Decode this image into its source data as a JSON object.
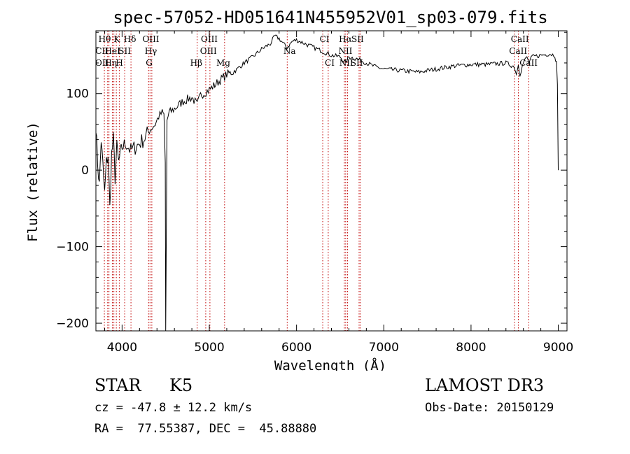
{
  "chart_data": {
    "type": "line",
    "title": "spec-57052-HD051641N455952V01_sp03-079.fits",
    "xlabel": "Wavelength (Å)",
    "ylabel": "Flux (relative)",
    "xlim": [
      3700,
      9100
    ],
    "ylim": [
      -210,
      182
    ],
    "xticks": [
      4000,
      5000,
      6000,
      7000,
      8000,
      9000
    ],
    "yticks": [
      -200,
      -100,
      0,
      100
    ],
    "grid": false,
    "series": [
      {
        "name": "flux",
        "x": [
          3700,
          3720,
          3740,
          3760,
          3780,
          3800,
          3820,
          3840,
          3860,
          3880,
          3900,
          3920,
          3940,
          3960,
          3980,
          4000,
          4050,
          4100,
          4150,
          4200,
          4250,
          4300,
          4340,
          4380,
          4420,
          4460,
          4480,
          4495,
          4500,
          4505,
          4515,
          4540,
          4600,
          4700,
          4800,
          4861,
          4900,
          5000,
          5100,
          5200,
          5300,
          5400,
          5500,
          5600,
          5700,
          5750,
          5800,
          5850,
          5890,
          5950,
          6000,
          6100,
          6200,
          6300,
          6400,
          6500,
          6563,
          6600,
          6700,
          6800,
          6900,
          7000,
          7200,
          7400,
          7600,
          7800,
          8000,
          8200,
          8400,
          8498,
          8520,
          8542,
          8560,
          8600,
          8640,
          8662,
          8700,
          8800,
          8900,
          8960,
          8980,
          8990,
          9000
        ],
        "values": [
          60,
          10,
          -20,
          40,
          5,
          -30,
          10,
          20,
          -50,
          20,
          40,
          -10,
          30,
          10,
          20,
          30,
          35,
          25,
          30,
          35,
          40,
          50,
          55,
          60,
          70,
          75,
          72,
          10,
          -210,
          -130,
          65,
          75,
          80,
          90,
          95,
          85,
          98,
          105,
          115,
          125,
          130,
          140,
          148,
          158,
          165,
          175,
          172,
          165,
          160,
          168,
          170,
          165,
          160,
          155,
          150,
          148,
          140,
          148,
          145,
          140,
          135,
          132,
          130,
          128,
          132,
          136,
          138,
          138,
          140,
          135,
          125,
          140,
          125,
          140,
          148,
          140,
          148,
          150,
          152,
          150,
          140,
          110,
          0
        ]
      }
    ],
    "line_markers": [
      {
        "label": "Hθ",
        "x": 3797
      },
      {
        "label": "CII",
        "x": 3835
      },
      {
        "label": "OII",
        "x": 3850
      },
      {
        "label": "HeI",
        "x": 3889
      },
      {
        "label": "Hη",
        "x": 3906
      },
      {
        "label": "K",
        "x": 3934
      },
      {
        "label": "H",
        "x": 3968
      },
      {
        "label": "SII",
        "x": 4030
      },
      {
        "label": "Hδ",
        "x": 4102
      },
      {
        "label": "OIII",
        "x": 4320
      },
      {
        "label": "Hγ",
        "x": 4341
      },
      {
        "label": "G",
        "x": 4304
      },
      {
        "label": "Hβ",
        "x": 4861
      },
      {
        "label": "OIII",
        "x": 4959
      },
      {
        "label": "OIII",
        "x": 5007
      },
      {
        "label": "Mg",
        "x": 5175
      },
      {
        "label": "Na",
        "x": 5893
      },
      {
        "label": "CI",
        "x": 6300
      },
      {
        "label": "CI",
        "x": 6363
      },
      {
        "label": "Hα",
        "x": 6563
      },
      {
        "label": "NII",
        "x": 6548
      },
      {
        "label": "NII",
        "x": 6584
      },
      {
        "label": "SII",
        "x": 6717
      },
      {
        "label": "SII",
        "x": 6731
      },
      {
        "label": "CaII",
        "x": 8498
      },
      {
        "label": "CaII",
        "x": 8542
      },
      {
        "label": "CaII",
        "x": 8662
      }
    ],
    "marker_labels_top": [
      {
        "text": "Hθ",
        "x": 3800,
        "row": 1
      },
      {
        "text": "K",
        "x": 3940,
        "row": 1
      },
      {
        "text": "Hδ",
        "x": 4090,
        "row": 1
      },
      {
        "text": "OIII",
        "x": 4330,
        "row": 1
      },
      {
        "text": "OIII",
        "x": 5000,
        "row": 1
      },
      {
        "text": "CI",
        "x": 6320,
        "row": 1
      },
      {
        "text": "Hα",
        "x": 6560,
        "row": 1
      },
      {
        "text": "SII",
        "x": 6700,
        "row": 1
      },
      {
        "text": "CaII",
        "x": 8560,
        "row": 1
      },
      {
        "text": "CII",
        "x": 3770,
        "row": 2
      },
      {
        "text": "HeI",
        "x": 3890,
        "row": 2
      },
      {
        "text": "SII",
        "x": 4030,
        "row": 2
      },
      {
        "text": "Hγ",
        "x": 4330,
        "row": 2
      },
      {
        "text": "OIII",
        "x": 4990,
        "row": 2
      },
      {
        "text": "Na",
        "x": 5920,
        "row": 2
      },
      {
        "text": "NII",
        "x": 6560,
        "row": 2
      },
      {
        "text": "CaII",
        "x": 8540,
        "row": 2
      },
      {
        "text": "OII",
        "x": 3770,
        "row": 3
      },
      {
        "text": "Hη",
        "x": 3870,
        "row": 3
      },
      {
        "text": "H",
        "x": 3970,
        "row": 3
      },
      {
        "text": "G",
        "x": 4310,
        "row": 3
      },
      {
        "text": "Hβ",
        "x": 4850,
        "row": 3
      },
      {
        "text": "Mg",
        "x": 5160,
        "row": 3
      },
      {
        "text": "CI",
        "x": 6380,
        "row": 3
      },
      {
        "text": "NII",
        "x": 6570,
        "row": 3
      },
      {
        "text": "SII",
        "x": 6690,
        "row": 3
      },
      {
        "text": "CaII",
        "x": 8660,
        "row": 3
      }
    ]
  },
  "info": {
    "object_class": "STAR",
    "subclass": "K5",
    "survey": "LAMOST DR3",
    "cz": "cz = -47.8 ± 12.2 km/s",
    "obs_date": "Obs-Date: 20150129",
    "coords": "RA =  77.55387, DEC =  45.88880"
  }
}
